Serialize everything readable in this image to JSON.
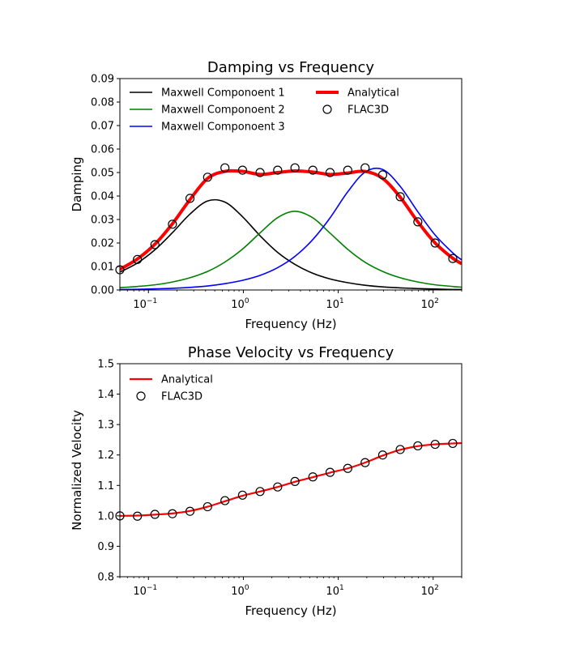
{
  "chart_data": [
    {
      "type": "line",
      "title": "Damping vs Frequency",
      "xlabel": "Frequency (Hz)",
      "ylabel": "Damping",
      "xscale": "log",
      "xlim": [
        0.05,
        200
      ],
      "ylim": [
        0,
        0.09
      ],
      "yticks": [
        "0.00",
        "0.01",
        "0.02",
        "0.03",
        "0.04",
        "0.05",
        "0.06",
        "0.07",
        "0.08",
        "0.09"
      ],
      "xticks": [
        {
          "value": 0.1,
          "base": "10",
          "exp": "−1"
        },
        {
          "value": 1,
          "base": "10",
          "exp": "0"
        },
        {
          "value": 10,
          "base": "10",
          "exp": "1"
        },
        {
          "value": 100,
          "base": "10",
          "exp": "2"
        }
      ],
      "grid": false,
      "legend_placement": "top-left",
      "x": [
        0.05,
        0.0765,
        0.117,
        0.179,
        0.274,
        0.42,
        0.64,
        0.98,
        1.5,
        2.3,
        3.5,
        5.4,
        8.2,
        12.6,
        19.2,
        29.4,
        45,
        69,
        105,
        161,
        200
      ],
      "series": [
        {
          "name": "Maxwell Componoent 1",
          "color": "#000000",
          "style": "line",
          "values": [
            0.0076,
            0.0115,
            0.0171,
            0.0244,
            0.0323,
            0.0379,
            0.0374,
            0.0312,
            0.0231,
            0.016,
            0.0109,
            0.0071,
            0.0047,
            0.0031,
            0.002,
            0.0013,
            0.0009,
            0.0006,
            0.0004,
            0.0002,
            0.0002
          ]
        },
        {
          "name": "Maxwell Componoent 2",
          "color": "#008000",
          "style": "line",
          "values": [
            0.001,
            0.0015,
            0.0022,
            0.0034,
            0.0052,
            0.0079,
            0.0119,
            0.0174,
            0.0243,
            0.0308,
            0.0335,
            0.0307,
            0.0242,
            0.0173,
            0.0118,
            0.0079,
            0.0052,
            0.0034,
            0.0022,
            0.0015,
            0.0012
          ]
        },
        {
          "name": "Maxwell Componoent 3",
          "color": "#0000ff",
          "style": "line",
          "values": [
            0.0002,
            0.0003,
            0.0005,
            0.0007,
            0.0011,
            0.0017,
            0.0027,
            0.0041,
            0.0062,
            0.0095,
            0.0143,
            0.0215,
            0.0307,
            0.0418,
            0.0502,
            0.0513,
            0.0441,
            0.0333,
            0.0234,
            0.0158,
            0.0128
          ]
        },
        {
          "name": "Analytical",
          "color": "#ff0000",
          "style": "thick-line",
          "values": [
            0.0088,
            0.0132,
            0.0195,
            0.0282,
            0.0385,
            0.0475,
            0.0505,
            0.0505,
            0.0492,
            0.05,
            0.0507,
            0.0502,
            0.0492,
            0.0498,
            0.0505,
            0.0475,
            0.0395,
            0.029,
            0.02,
            0.0135,
            0.0112
          ]
        },
        {
          "name": "FLAC3D",
          "color": "#000000",
          "style": "open-circle",
          "x": [
            0.05,
            0.0765,
            0.117,
            0.179,
            0.274,
            0.42,
            0.64,
            0.98,
            1.5,
            2.3,
            3.5,
            5.4,
            8.2,
            12.6,
            19.2,
            29.4,
            45,
            69,
            105,
            161
          ],
          "values": [
            0.0086,
            0.013,
            0.0193,
            0.028,
            0.039,
            0.048,
            0.052,
            0.051,
            0.05,
            0.051,
            0.052,
            0.051,
            0.05,
            0.051,
            0.052,
            0.049,
            0.0397,
            0.029,
            0.02,
            0.0134
          ]
        }
      ]
    },
    {
      "type": "line",
      "title": "Phase Velocity vs Frequency",
      "xlabel": "Frequency (Hz)",
      "ylabel": "Normalized Velocity",
      "xscale": "log",
      "xlim": [
        0.05,
        200
      ],
      "ylim": [
        0.8,
        1.5
      ],
      "yticks": [
        "0.8",
        "0.9",
        "1.0",
        "1.1",
        "1.2",
        "1.3",
        "1.4",
        "1.5"
      ],
      "xticks": [
        {
          "value": 0.1,
          "base": "10",
          "exp": "−1"
        },
        {
          "value": 1,
          "base": "10",
          "exp": "0"
        },
        {
          "value": 10,
          "base": "10",
          "exp": "1"
        },
        {
          "value": 100,
          "base": "10",
          "exp": "2"
        }
      ],
      "grid": false,
      "legend_placement": "top-left",
      "x": [
        0.05,
        0.0765,
        0.117,
        0.179,
        0.274,
        0.42,
        0.64,
        0.98,
        1.5,
        2.3,
        3.5,
        5.4,
        8.2,
        12.6,
        19.2,
        29.4,
        45,
        69,
        105,
        161,
        200
      ],
      "series": [
        {
          "name": "Analytical",
          "color": "#ff0000",
          "style": "line",
          "values": [
            1.0,
            1.001,
            1.004,
            1.008,
            1.016,
            1.03,
            1.048,
            1.066,
            1.08,
            1.095,
            1.112,
            1.127,
            1.142,
            1.156,
            1.175,
            1.198,
            1.217,
            1.229,
            1.235,
            1.238,
            1.239
          ]
        },
        {
          "name": "FLAC3D",
          "color": "#000000",
          "style": "open-circle",
          "x": [
            0.05,
            0.0765,
            0.117,
            0.179,
            0.274,
            0.42,
            0.64,
            0.98,
            1.5,
            2.3,
            3.5,
            5.4,
            8.2,
            12.6,
            19.2,
            29.4,
            45,
            69,
            105,
            161
          ],
          "values": [
            1.0,
            0.999,
            1.005,
            1.007,
            1.015,
            1.03,
            1.05,
            1.068,
            1.08,
            1.095,
            1.113,
            1.128,
            1.143,
            1.156,
            1.175,
            1.2,
            1.218,
            1.23,
            1.235,
            1.238
          ]
        }
      ]
    }
  ]
}
